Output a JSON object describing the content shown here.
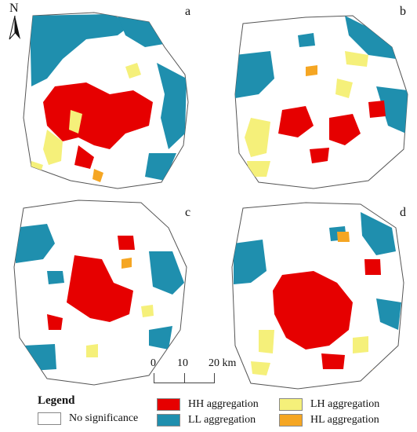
{
  "panels": [
    {
      "letter": "a"
    },
    {
      "letter": "b"
    },
    {
      "letter": "c"
    },
    {
      "letter": "d"
    }
  ],
  "north_label": "N",
  "scale": {
    "ticks": [
      "0",
      "10",
      "20 km"
    ]
  },
  "legend": {
    "title": "Legend",
    "items": [
      {
        "label": "No significance",
        "color": "#ffffff"
      },
      {
        "label": "HH aggregation",
        "color": "#e60000"
      },
      {
        "label": "LL aggregation",
        "color": "#1f8fae"
      },
      {
        "label": "LH aggregation",
        "color": "#f5f07a"
      },
      {
        "label": "HL aggregation",
        "color": "#f5a623"
      }
    ]
  }
}
